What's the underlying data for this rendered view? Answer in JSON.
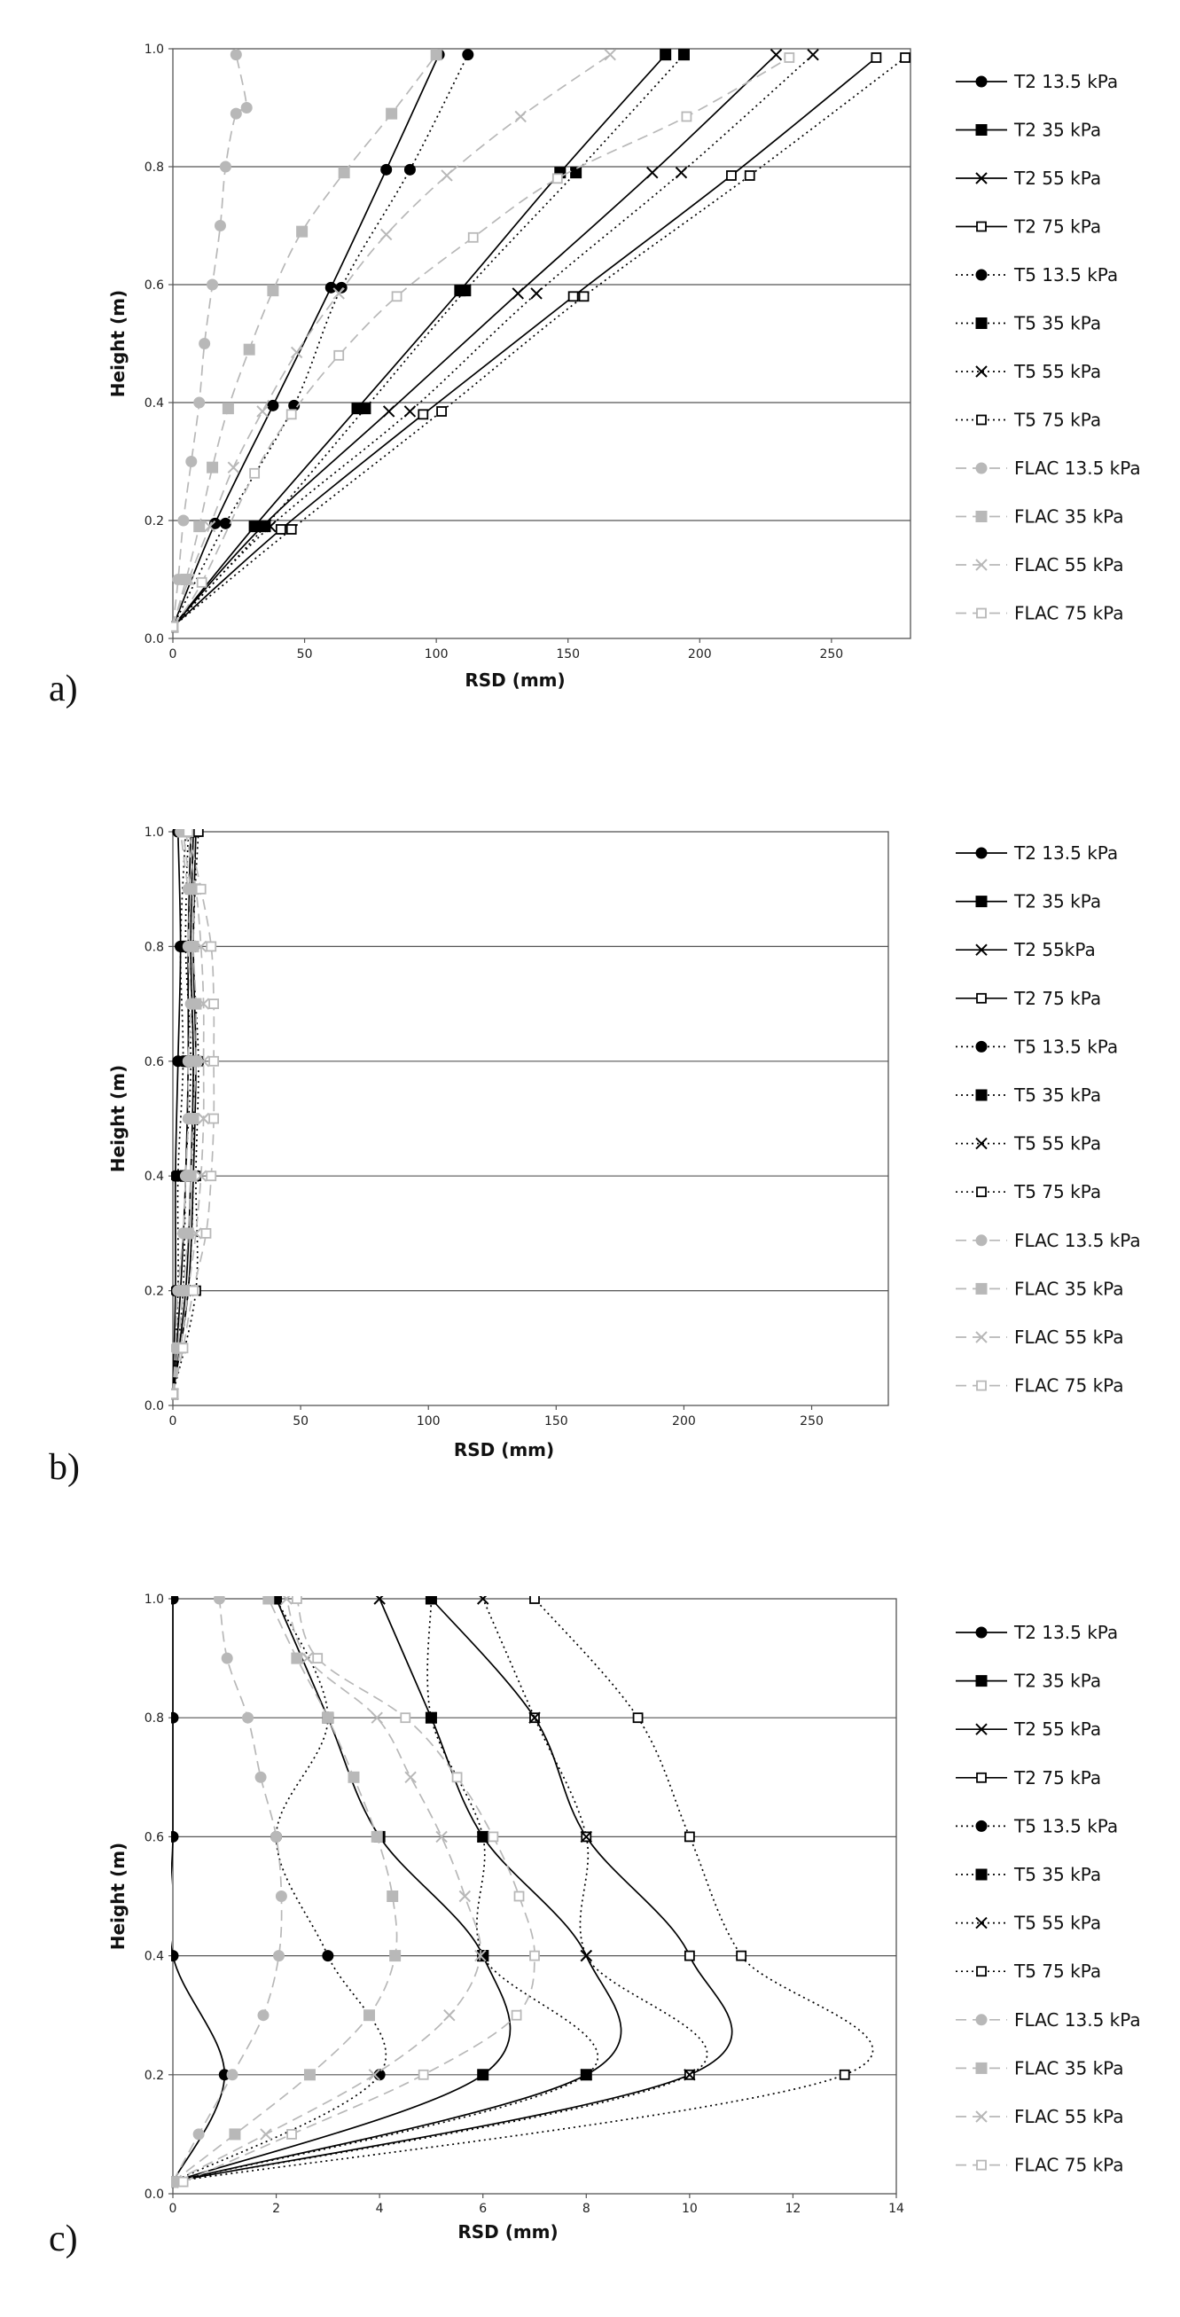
{
  "chart_data": [
    {
      "type": "line",
      "panel_label": "a)",
      "xlabel": "RSD (mm)",
      "ylabel": "Height (m)",
      "xlim": [
        0,
        280
      ],
      "ylim": [
        0,
        1.0
      ],
      "xticks": [
        "0",
        "50",
        "100",
        "150",
        "200",
        "250"
      ],
      "yticks": [
        "0.0",
        "0.2",
        "0.4",
        "0.6",
        "0.8",
        "1.0"
      ],
      "grid": "horizontal",
      "legend": "right",
      "series": [
        {
          "name": "T2 13.5 kPa",
          "marker": "circle",
          "dash": "solid",
          "color": "#000000",
          "x": [
            0,
            16,
            38,
            60,
            81,
            101
          ],
          "y": [
            0.02,
            0.195,
            0.395,
            0.595,
            0.795,
            0.99
          ]
        },
        {
          "name": "T2 35 kPa",
          "marker": "square",
          "dash": "solid",
          "color": "#000000",
          "x": [
            0,
            31,
            70,
            109,
            147,
            187
          ],
          "y": [
            0.02,
            0.19,
            0.39,
            0.59,
            0.79,
            0.99
          ]
        },
        {
          "name": "T2 55 kPa",
          "marker": "x",
          "dash": "solid",
          "color": "#000000",
          "x": [
            0,
            34,
            82,
            131,
            182,
            229
          ],
          "y": [
            0.02,
            0.19,
            0.385,
            0.585,
            0.79,
            0.99
          ]
        },
        {
          "name": "T2 75 kPa",
          "marker": "opensquare",
          "dash": "solid",
          "color": "#000000",
          "x": [
            0,
            41,
            95,
            152,
            212,
            267
          ],
          "y": [
            0.02,
            0.185,
            0.38,
            0.58,
            0.785,
            0.985
          ]
        },
        {
          "name": "T5 13.5 kPa",
          "marker": "circle",
          "dash": "dotted",
          "color": "#000000",
          "x": [
            0,
            20,
            46,
            64,
            90,
            112
          ],
          "y": [
            0.02,
            0.195,
            0.395,
            0.595,
            0.795,
            0.99
          ]
        },
        {
          "name": "T5 35 kPa",
          "marker": "square",
          "dash": "dotted",
          "color": "#000000",
          "x": [
            0,
            35,
            73,
            111,
            153,
            194
          ],
          "y": [
            0.02,
            0.19,
            0.39,
            0.59,
            0.79,
            0.99
          ]
        },
        {
          "name": "T5 55 kPa",
          "marker": "x",
          "dash": "dotted",
          "color": "#000000",
          "x": [
            0,
            37,
            90,
            138,
            193,
            243
          ],
          "y": [
            0.02,
            0.19,
            0.385,
            0.585,
            0.79,
            0.99
          ]
        },
        {
          "name": "T5 75 kPa",
          "marker": "opensquare",
          "dash": "dotted",
          "color": "#000000",
          "x": [
            0,
            45,
            102,
            156,
            219,
            278
          ],
          "y": [
            0.02,
            0.185,
            0.385,
            0.58,
            0.785,
            0.985
          ]
        },
        {
          "name": "FLAC 13.5 kPa",
          "marker": "circle",
          "dash": "dashed",
          "color": "#b8b8b8",
          "x": [
            0,
            2,
            4,
            7,
            10,
            12,
            15,
            18,
            20,
            24,
            28,
            24
          ],
          "y": [
            0.02,
            0.1,
            0.2,
            0.3,
            0.4,
            0.5,
            0.6,
            0.7,
            0.8,
            0.89,
            0.9,
            0.99
          ]
        },
        {
          "name": "FLAC 35 kPa",
          "marker": "square",
          "dash": "dashed",
          "color": "#b8b8b8",
          "x": [
            0,
            5,
            10,
            15,
            21,
            29,
            38,
            49,
            65,
            83,
            100
          ],
          "y": [
            0.02,
            0.1,
            0.19,
            0.29,
            0.39,
            0.49,
            0.59,
            0.69,
            0.79,
            0.89,
            0.99
          ]
        },
        {
          "name": "FLAC 55 kPa",
          "marker": "x",
          "dash": "dashed",
          "color": "#b8b8b8",
          "x": [
            0,
            6,
            14,
            23,
            34,
            47,
            63,
            81,
            104,
            132,
            166
          ],
          "y": [
            0.02,
            0.1,
            0.19,
            0.29,
            0.385,
            0.485,
            0.585,
            0.685,
            0.785,
            0.885,
            0.99
          ]
        },
        {
          "name": "FLAC 75 kPa",
          "marker": "opensquare",
          "dash": "dashed",
          "color": "#b8b8b8",
          "x": [
            0,
            11,
            31,
            45,
            63,
            85,
            114,
            146,
            195,
            234
          ],
          "y": [
            0.02,
            0.095,
            0.28,
            0.38,
            0.48,
            0.58,
            0.68,
            0.78,
            0.885,
            0.985
          ]
        }
      ]
    },
    {
      "type": "line",
      "panel_label": "b)",
      "xlabel": "RSD (mm)",
      "ylabel": "Height (m)",
      "xlim": [
        0,
        280
      ],
      "ylim": [
        0,
        1.0
      ],
      "xticks": [
        "0",
        "50",
        "100",
        "150",
        "200",
        "250"
      ],
      "yticks": [
        "0.0",
        "0.2",
        "0.4",
        "0.6",
        "0.8",
        "1.0"
      ],
      "grid": "horizontal",
      "legend": "right",
      "series": [
        {
          "name": "T2 13.5 kPa",
          "marker": "circle",
          "dash": "solid",
          "color": "#000000",
          "x": [
            0,
            1,
            1,
            2,
            3,
            2
          ],
          "y": [
            0.02,
            0.2,
            0.4,
            0.6,
            0.8,
            1.0
          ]
        },
        {
          "name": "T2 35 kPa",
          "marker": "square",
          "dash": "solid",
          "color": "#000000",
          "x": [
            0,
            3,
            5,
            6,
            6,
            7
          ],
          "y": [
            0.02,
            0.2,
            0.4,
            0.6,
            0.8,
            1.0
          ]
        },
        {
          "name": "T2 55kPa",
          "marker": "x",
          "dash": "solid",
          "color": "#000000",
          "x": [
            0,
            5,
            7,
            8,
            7,
            8
          ],
          "y": [
            0.02,
            0.2,
            0.4,
            0.6,
            0.8,
            1.0
          ]
        },
        {
          "name": "T2 75 kPa",
          "marker": "opensquare",
          "dash": "solid",
          "color": "#000000",
          "x": [
            0,
            6,
            8,
            9,
            8,
            9
          ],
          "y": [
            0.02,
            0.2,
            0.4,
            0.6,
            0.8,
            1.0
          ]
        },
        {
          "name": "T5 13.5 kPa",
          "marker": "circle",
          "dash": "dotted",
          "color": "#000000",
          "x": [
            0,
            2,
            2,
            4,
            3,
            5
          ],
          "y": [
            0.02,
            0.2,
            0.4,
            0.6,
            0.8,
            1.0
          ]
        },
        {
          "name": "T5 35 kPa",
          "marker": "square",
          "dash": "dotted",
          "color": "#000000",
          "x": [
            0,
            4,
            5,
            7,
            5,
            6
          ],
          "y": [
            0.02,
            0.2,
            0.4,
            0.6,
            0.8,
            1.0
          ]
        },
        {
          "name": "T5 55 kPa",
          "marker": "x",
          "dash": "dotted",
          "color": "#000000",
          "x": [
            0,
            6,
            8,
            8,
            7,
            8
          ],
          "y": [
            0.02,
            0.2,
            0.4,
            0.6,
            0.8,
            1.0
          ]
        },
        {
          "name": "T5 75 kPa",
          "marker": "opensquare",
          "dash": "dotted",
          "color": "#000000",
          "x": [
            0,
            9,
            9,
            10,
            8,
            10
          ],
          "y": [
            0.02,
            0.2,
            0.4,
            0.6,
            0.8,
            1.0
          ]
        },
        {
          "name": "FLAC 13.5 kPa",
          "marker": "circle",
          "dash": "dashed",
          "color": "#b8b8b8",
          "x": [
            0,
            1,
            2,
            4,
            5,
            6,
            6,
            7,
            6,
            7,
            6,
            3
          ],
          "y": [
            0.02,
            0.1,
            0.2,
            0.3,
            0.4,
            0.5,
            0.6,
            0.7,
            0.8,
            0.9,
            0.9,
            1.0
          ]
        },
        {
          "name": "FLAC 35 kPa",
          "marker": "square",
          "dash": "dashed",
          "color": "#b8b8b8",
          "x": [
            0,
            2,
            4,
            6,
            7,
            8,
            9,
            9,
            8,
            8,
            7,
            4
          ],
          "y": [
            0.02,
            0.1,
            0.2,
            0.3,
            0.4,
            0.5,
            0.6,
            0.7,
            0.8,
            0.9,
            0.9,
            1.0
          ]
        },
        {
          "name": "FLAC 55 kPa",
          "marker": "x",
          "dash": "dashed",
          "color": "#b8b8b8",
          "x": [
            0,
            3,
            6,
            9,
            11,
            12,
            12,
            12,
            11,
            9,
            5
          ],
          "y": [
            0.02,
            0.1,
            0.2,
            0.3,
            0.4,
            0.5,
            0.6,
            0.7,
            0.8,
            0.9,
            1.0
          ]
        },
        {
          "name": "FLAC 75 kPa",
          "marker": "opensquare",
          "dash": "dashed",
          "color": "#b8b8b8",
          "x": [
            0,
            4,
            8,
            13,
            15,
            16,
            16,
            16,
            15,
            11,
            6
          ],
          "y": [
            0.02,
            0.1,
            0.2,
            0.3,
            0.4,
            0.5,
            0.6,
            0.7,
            0.8,
            0.9,
            1.0
          ]
        }
      ]
    },
    {
      "type": "line",
      "panel_label": "c)",
      "xlabel": "RSD (mm)",
      "ylabel": "Height (m)",
      "xlim": [
        0,
        14
      ],
      "ylim": [
        0,
        1.0
      ],
      "xticks": [
        "0",
        "2",
        "4",
        "6",
        "8",
        "10",
        "12",
        "14"
      ],
      "yticks": [
        "0.0",
        "0.2",
        "0.4",
        "0.6",
        "0.8",
        "1.0"
      ],
      "grid": "horizontal",
      "legend": "right",
      "series": [
        {
          "name": "T2 13.5 kPa",
          "marker": "circle",
          "dash": "solid",
          "color": "#000000",
          "x": [
            0,
            1,
            0,
            0,
            0,
            0
          ],
          "y": [
            0.02,
            0.2,
            0.4,
            0.6,
            0.8,
            1.0
          ]
        },
        {
          "name": "T2 35 kPa",
          "marker": "square",
          "dash": "solid",
          "color": "#000000",
          "x": [
            0,
            6,
            6,
            4,
            3,
            2
          ],
          "y": [
            0.02,
            0.2,
            0.4,
            0.6,
            0.8,
            1.0
          ]
        },
        {
          "name": "T2 55 kPa",
          "marker": "x",
          "dash": "solid",
          "color": "#000000",
          "x": [
            0,
            8,
            8,
            6,
            5,
            4
          ],
          "y": [
            0.02,
            0.2,
            0.4,
            0.6,
            0.8,
            1.0
          ]
        },
        {
          "name": "T2 75 kPa",
          "marker": "opensquare",
          "dash": "solid",
          "color": "#000000",
          "x": [
            0,
            10,
            10,
            8,
            7,
            5
          ],
          "y": [
            0.02,
            0.2,
            0.4,
            0.6,
            0.8,
            1.0
          ]
        },
        {
          "name": "T5 13.5 kPa",
          "marker": "circle",
          "dash": "dotted",
          "color": "#000000",
          "x": [
            0,
            4,
            3,
            2,
            3,
            2
          ],
          "y": [
            0.02,
            0.2,
            0.4,
            0.6,
            0.8,
            1.0
          ]
        },
        {
          "name": "T5 35 kPa",
          "marker": "square",
          "dash": "dotted",
          "color": "#000000",
          "x": [
            0,
            8,
            6,
            6,
            5,
            5
          ],
          "y": [
            0.02,
            0.2,
            0.4,
            0.6,
            0.8,
            1.0
          ]
        },
        {
          "name": "T5 55 kPa",
          "marker": "x",
          "dash": "dotted",
          "color": "#000000",
          "x": [
            0,
            10,
            8,
            8,
            7,
            6
          ],
          "y": [
            0.02,
            0.2,
            0.4,
            0.6,
            0.8,
            1.0
          ]
        },
        {
          "name": "T5 75 kPa",
          "marker": "opensquare",
          "dash": "dotted",
          "color": "#000000",
          "x": [
            0,
            13,
            11,
            10,
            9,
            7
          ],
          "y": [
            0.02,
            0.2,
            0.4,
            0.6,
            0.8,
            1.0
          ]
        },
        {
          "name": "FLAC 13.5 kPa",
          "marker": "circle",
          "dash": "dashed",
          "color": "#b8b8b8",
          "x": [
            0,
            0.5,
            1.15,
            1.75,
            2.05,
            2.1,
            2.0,
            1.7,
            1.45,
            1.05,
            0.9
          ],
          "y": [
            0.02,
            0.1,
            0.2,
            0.3,
            0.4,
            0.5,
            0.6,
            0.7,
            0.8,
            0.9,
            1.0
          ]
        },
        {
          "name": "FLAC 35 kPa",
          "marker": "square",
          "dash": "dashed",
          "color": "#b8b8b8",
          "x": [
            0,
            1.2,
            2.65,
            3.8,
            4.3,
            4.25,
            3.95,
            3.5,
            3.0,
            2.4,
            1.85
          ],
          "y": [
            0.02,
            0.1,
            0.2,
            0.3,
            0.4,
            0.5,
            0.6,
            0.7,
            0.8,
            0.9,
            1.0
          ]
        },
        {
          "name": "FLAC 55 kPa",
          "marker": "x",
          "dash": "dashed",
          "color": "#b8b8b8",
          "x": [
            0,
            1.8,
            3.9,
            5.35,
            5.95,
            5.65,
            5.2,
            4.6,
            3.95,
            2.6,
            2.2
          ],
          "y": [
            0.02,
            0.1,
            0.2,
            0.3,
            0.4,
            0.5,
            0.6,
            0.7,
            0.8,
            0.9,
            1.0
          ]
        },
        {
          "name": "FLAC 75 kPa",
          "marker": "opensquare",
          "dash": "dashed",
          "color": "#b8b8b8",
          "x": [
            0.2,
            2.3,
            4.85,
            6.65,
            7.0,
            6.7,
            6.2,
            5.5,
            4.5,
            2.8,
            2.4
          ],
          "y": [
            0.02,
            0.1,
            0.2,
            0.3,
            0.4,
            0.5,
            0.6,
            0.7,
            0.8,
            0.9,
            1.0
          ]
        }
      ]
    }
  ]
}
